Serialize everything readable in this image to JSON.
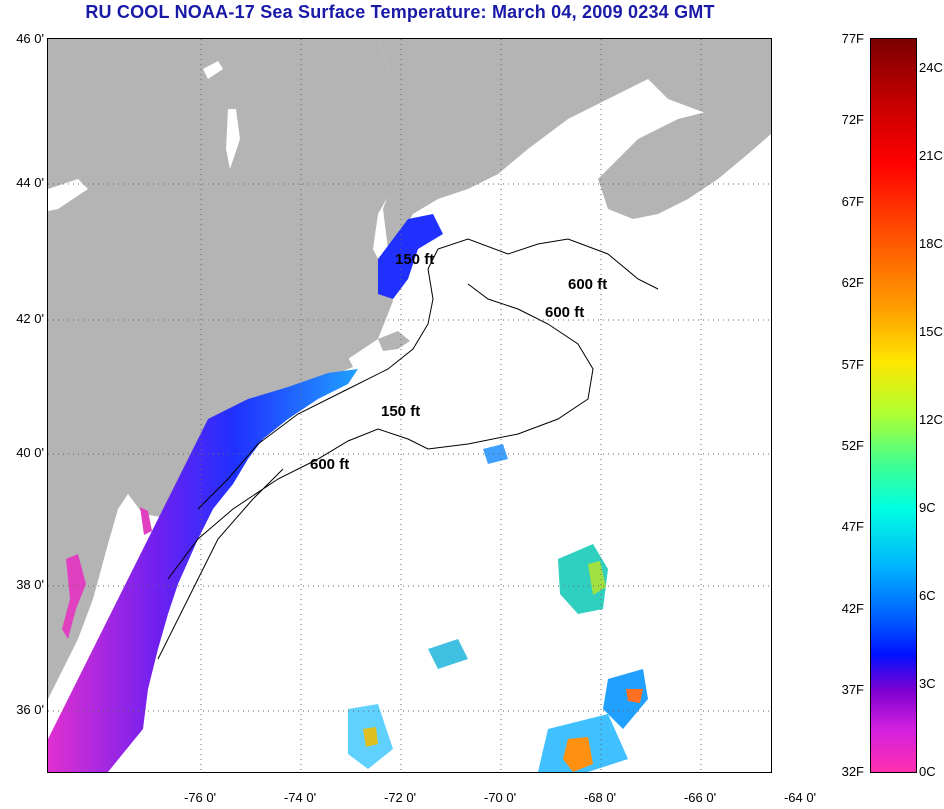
{
  "title": "RU COOL  NOAA-17  Sea Surface Temperature:  March 04, 2009 0234 GMT",
  "lat_labels": [
    "46 0'",
    "44 0'",
    "42 0'",
    "40 0'",
    "38 0'",
    "36 0'"
  ],
  "lon_labels": [
    "-76 0'",
    "-74 0'",
    "-72 0'",
    "-70 0'",
    "-68 0'",
    "-66 0'",
    "-64 0'"
  ],
  "contour_labels": [
    "150 ft",
    "600 ft",
    "600 ft",
    "150 ft",
    "600 ft"
  ],
  "colorbar": {
    "fahrenheit": [
      "77F",
      "72F",
      "67F",
      "62F",
      "57F",
      "52F",
      "47F",
      "42F",
      "37F",
      "32F"
    ],
    "celsius": [
      "24C",
      "21C",
      "18C",
      "15C",
      "12C",
      "9C",
      "6C",
      "3C",
      "0C"
    ]
  },
  "colors": {
    "land": "#b4b4b4",
    "ocean_no_data": "#ffffff",
    "title": "#1a1aa8",
    "cold_water": "#2030ff",
    "coldest_water": "#e030d0"
  }
}
